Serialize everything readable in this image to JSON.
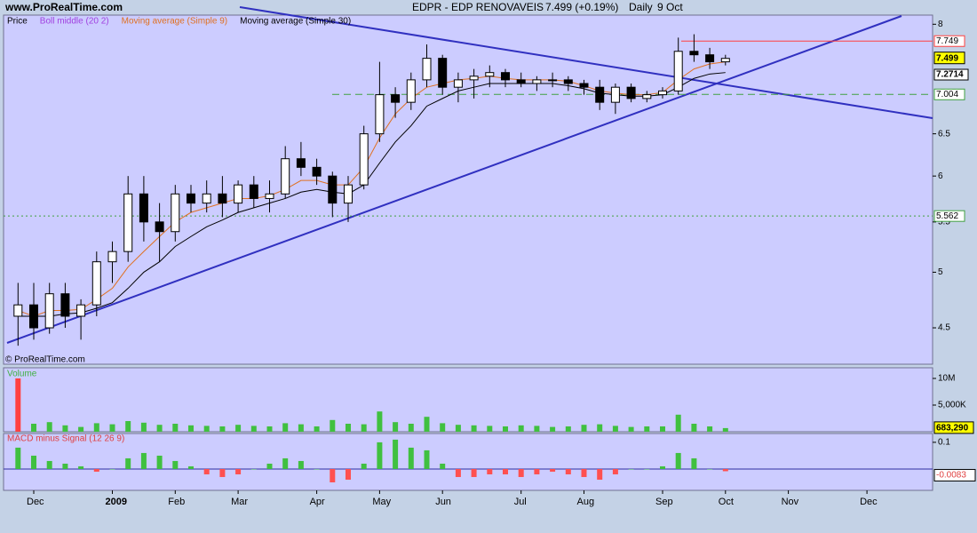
{
  "site": "www.ProRealTime.com",
  "watermark": "© ProRealTime.com",
  "chart_data": [
    {
      "type": "candlestick",
      "title": "EDPR - EDP RENOVAVEIS",
      "last_price_text": "7.499 (+0.19%)",
      "period": "Daily",
      "date": "9 Oct",
      "log_scale": true,
      "ylim": [
        4.2,
        8.14
      ],
      "yticks": [
        4.5,
        5,
        5.5,
        6,
        6.5,
        8
      ],
      "categories": [
        null,
        "Dec",
        null,
        null,
        null,
        null,
        "2009",
        null,
        null,
        null,
        "Feb",
        null,
        null,
        null,
        "Mar",
        null,
        null,
        null,
        null,
        "Apr",
        null,
        null,
        null,
        "May",
        null,
        null,
        null,
        "Jun",
        null,
        null,
        null,
        null,
        "Jul",
        null,
        null,
        null,
        "Aug",
        null,
        null,
        null,
        null,
        "Sep",
        null,
        null,
        null,
        "Oct",
        null,
        null,
        null,
        "Nov",
        null,
        null,
        null,
        null,
        "Dec",
        null,
        null,
        null
      ],
      "up_color": "#ffffff",
      "down_color": "#000000",
      "series": [
        {
          "name": "Price",
          "open": [
            4.6,
            4.7,
            4.5,
            4.8,
            4.6,
            4.7,
            5.1,
            5.2,
            5.8,
            5.5,
            5.4,
            5.8,
            5.7,
            5.8,
            5.7,
            5.9,
            5.75,
            5.8,
            6.2,
            6.1,
            6.0,
            5.7,
            5.9,
            6.5,
            7.0,
            6.9,
            7.2,
            7.5,
            7.1,
            7.2,
            7.25,
            7.3,
            7.2,
            7.15,
            7.2,
            7.2,
            7.15,
            7.1,
            6.9,
            7.1,
            6.95,
            7.0,
            7.05,
            7.6,
            7.55,
            7.45,
            null,
            null,
            null,
            null,
            null,
            null,
            null,
            null,
            null,
            null,
            null,
            null
          ],
          "high": [
            4.9,
            4.9,
            4.9,
            4.9,
            4.75,
            5.2,
            5.3,
            6.0,
            6.0,
            5.7,
            5.9,
            5.9,
            5.95,
            6.0,
            5.95,
            6.0,
            5.95,
            6.35,
            6.4,
            6.2,
            6.05,
            6.0,
            6.6,
            7.45,
            7.1,
            7.3,
            7.7,
            7.55,
            7.3,
            7.35,
            7.4,
            7.35,
            7.3,
            7.25,
            7.3,
            7.25,
            7.2,
            7.2,
            7.15,
            7.15,
            7.05,
            7.1,
            7.8,
            7.85,
            7.65,
            7.55,
            null,
            null,
            null,
            null,
            null,
            null,
            null,
            null,
            null,
            null,
            null,
            null
          ],
          "low": [
            4.35,
            4.4,
            4.45,
            4.5,
            4.4,
            4.6,
            4.9,
            5.1,
            5.3,
            5.1,
            5.3,
            5.6,
            5.6,
            5.55,
            5.6,
            5.65,
            5.6,
            5.75,
            6.0,
            5.9,
            5.55,
            5.5,
            5.85,
            6.4,
            6.7,
            6.8,
            7.1,
            7.0,
            6.9,
            6.95,
            7.1,
            7.1,
            7.1,
            7.05,
            7.1,
            7.05,
            7.0,
            6.8,
            6.75,
            6.9,
            6.9,
            6.95,
            7.0,
            7.45,
            7.35,
            7.4,
            null,
            null,
            null,
            null,
            null,
            null,
            null,
            null,
            null,
            null,
            null,
            null
          ],
          "close": [
            4.7,
            4.5,
            4.8,
            4.6,
            4.7,
            5.1,
            5.2,
            5.8,
            5.5,
            5.4,
            5.8,
            5.7,
            5.8,
            5.7,
            5.9,
            5.75,
            5.8,
            6.2,
            6.1,
            6.0,
            5.7,
            5.9,
            6.5,
            7.0,
            6.9,
            7.2,
            7.5,
            7.1,
            7.2,
            7.25,
            7.3,
            7.2,
            7.15,
            7.2,
            7.2,
            7.15,
            7.1,
            6.9,
            7.1,
            6.95,
            7.0,
            7.05,
            7.6,
            7.55,
            7.45,
            7.499,
            null,
            null,
            null,
            null,
            null,
            null,
            null,
            null,
            null,
            null,
            null,
            null
          ]
        },
        {
          "name": "Boll middle (20 2)",
          "color": "#a040e0"
        },
        {
          "name": "Moving average (Simple 9)",
          "color": "#e07020",
          "values": [
            4.65,
            4.6,
            4.65,
            4.65,
            4.66,
            4.75,
            4.85,
            5.05,
            5.2,
            5.35,
            5.5,
            5.6,
            5.65,
            5.7,
            5.75,
            5.75,
            5.78,
            5.85,
            5.95,
            5.95,
            5.9,
            5.9,
            6.1,
            6.45,
            6.75,
            6.95,
            7.1,
            7.15,
            7.2,
            7.22,
            7.25,
            7.22,
            7.2,
            7.2,
            7.2,
            7.18,
            7.12,
            7.05,
            7.02,
            7.0,
            7.0,
            7.03,
            7.2,
            7.35,
            7.42,
            7.45,
            null,
            null,
            null,
            null,
            null,
            null,
            null,
            null,
            null,
            null,
            null,
            null
          ]
        },
        {
          "name": "Moving average (Simple 30)",
          "color": "#000000",
          "values": [
            4.6,
            4.6,
            4.6,
            4.62,
            4.63,
            4.67,
            4.72,
            4.85,
            5.0,
            5.1,
            5.25,
            5.35,
            5.45,
            5.52,
            5.6,
            5.65,
            5.7,
            5.75,
            5.82,
            5.85,
            5.82,
            5.8,
            5.9,
            6.15,
            6.4,
            6.6,
            6.85,
            6.95,
            7.05,
            7.1,
            7.15,
            7.15,
            7.15,
            7.15,
            7.15,
            7.12,
            7.08,
            7.02,
            7.0,
            6.98,
            6.98,
            7.0,
            7.1,
            7.22,
            7.28,
            7.3,
            null,
            null,
            null,
            null,
            null,
            null,
            null,
            null,
            null,
            null,
            null,
            null
          ]
        }
      ],
      "levels": [
        {
          "value": 7.749,
          "label": "7.749",
          "color": "#ff4040",
          "dash": "none"
        },
        {
          "value": 7.004,
          "label": "7.004",
          "color": "#40a040",
          "dash": "8 5"
        },
        {
          "value": 5.562,
          "label": "5.562",
          "color": "#40a040",
          "dash": "2 3"
        }
      ],
      "ma30_marker": {
        "value": 7.2714,
        "label": "7.2714"
      },
      "last_box_color": "#ffff00"
    },
    {
      "type": "bar",
      "title": "Volume",
      "color": "#40c040",
      "spike_color": "#ff4040",
      "ylim": [
        0,
        12000000
      ],
      "yticks": [
        {
          "value": 10000000,
          "label": "10M"
        },
        {
          "value": 5000000,
          "label": "5,000K"
        }
      ],
      "values": [
        10000000,
        1500000,
        1800000,
        1200000,
        900000,
        1600000,
        1400000,
        2000000,
        1700000,
        1300000,
        1500000,
        1200000,
        1100000,
        1000000,
        1300000,
        1100000,
        1000000,
        1600000,
        1400000,
        1000000,
        2200000,
        1500000,
        1400000,
        3800000,
        1800000,
        1500000,
        2800000,
        1600000,
        1300000,
        1200000,
        1100000,
        1000000,
        1200000,
        1100000,
        900000,
        1000000,
        1300000,
        1400000,
        1100000,
        900000,
        1000000,
        1000000,
        3200000,
        1500000,
        1000000,
        683290,
        null,
        null,
        null,
        null,
        null,
        null,
        null,
        null,
        null,
        null,
        null,
        null
      ],
      "value_labels": {
        "45": "683,290"
      }
    },
    {
      "type": "histogram-signed",
      "title": "MACD minus Signal (12 26 9)",
      "positive_color": "#40c040",
      "negative_color": "#ff5050",
      "ylim": [
        -0.08,
        0.133
      ],
      "yticks": [
        0.1
      ],
      "values": [
        0.08,
        0.05,
        0.03,
        0.02,
        0.01,
        -0.01,
        0.0,
        0.04,
        0.06,
        0.05,
        0.03,
        0.01,
        -0.02,
        -0.03,
        -0.02,
        0.0,
        0.02,
        0.04,
        0.03,
        0.0,
        -0.05,
        -0.04,
        0.02,
        0.1,
        0.11,
        0.08,
        0.07,
        0.02,
        -0.03,
        -0.03,
        -0.02,
        -0.02,
        -0.03,
        -0.02,
        -0.01,
        -0.02,
        -0.03,
        -0.04,
        -0.02,
        0.0,
        0.0,
        0.01,
        0.06,
        0.04,
        0.0,
        -0.0083,
        null,
        null,
        null,
        null,
        null,
        null,
        null,
        null,
        null,
        null,
        null,
        null
      ]
    }
  ]
}
